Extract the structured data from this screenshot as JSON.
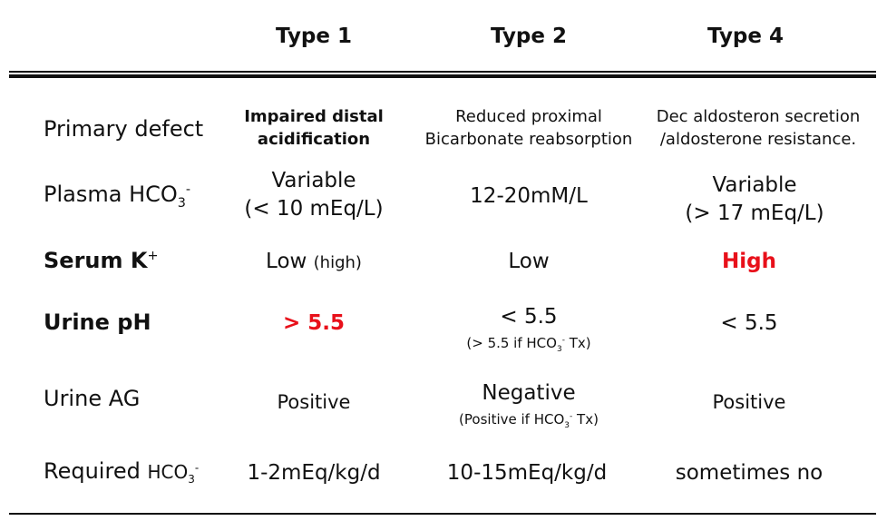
{
  "headers": [
    "Type 1",
    "Type 2",
    "Type 4"
  ],
  "rows": {
    "primary_defect": {
      "label": "Primary defect",
      "type1": [
        "Impaired distal",
        "acidification"
      ],
      "type2": [
        "Reduced proximal",
        "Bicarbonate reabsorption"
      ],
      "type4": [
        "Dec aldosteron secretion",
        "/aldosterone resistance."
      ]
    },
    "plasma_hco3": {
      "label": "Plasma HCO",
      "label_sub": "3",
      "label_sup": "-",
      "type1": [
        "Variable",
        "(< 10 mEq/L)"
      ],
      "type2": "12-20mM/L",
      "type4": [
        "Variable",
        "(> 17 mEq/L)"
      ]
    },
    "serum_k": {
      "label": "Serum K",
      "label_sup": "+",
      "type1": "Low",
      "type1_note": "(high)",
      "type2": "Low",
      "type4": "High"
    },
    "urine_ph": {
      "label": "Urine pH",
      "type1": "> 5.5",
      "type2": "< 5.5",
      "type2_note_pre": "(> 5.5 if HCO",
      "type2_note_sub": "3",
      "type2_note_sup": "-",
      "type2_note_post": " Tx)",
      "type4": "< 5.5"
    },
    "urine_ag": {
      "label": "Urine AG",
      "type1": "Positive",
      "type2": "Negative",
      "type2_note_pre": "(Positive if HCO",
      "type2_note_sub": "3",
      "type2_note_sup": "-",
      "type2_note_post": " Tx)",
      "type4": "Positive"
    },
    "required_hco3": {
      "label": "Required",
      "label2": "HCO",
      "label_sub": "3",
      "label_sup": "-",
      "type1": "1-2mEq/kg/d",
      "type2": "10-15mEq/kg/d",
      "type4": "sometimes no"
    }
  },
  "colors": {
    "highlight": "#e8101a",
    "text": "#111111"
  }
}
